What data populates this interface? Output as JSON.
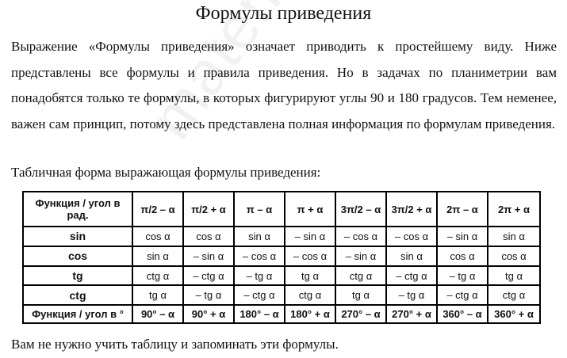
{
  "title": "Формулы приведения",
  "intro": "Выражение «Формулы приведения» означает приводить к простейшему виду. Ниже представлены все формулы  и правила приведения. Но в задачах по планиметрии вам понадобятся только те формулы, в которых фигурируют углы 90 и 180 градусов. Тем неменее, важен сам принцип, потому здесь представлена полная информация по формулам приведения.",
  "caption": "Табличная форма выражающая формулы приведения:",
  "watermark": "matematikalegko.ru",
  "table": {
    "corner_top": "Функция / угол в рад.",
    "corner_bottom": "Функция / угол в °",
    "rad_headers": [
      "π/2 – α",
      "π/2 + α",
      "π – α",
      "π + α",
      "3π/2 – α",
      "3π/2 + α",
      "2π – α",
      "2π + α"
    ],
    "deg_headers": [
      "90° – α",
      "90° + α",
      "180° – α",
      "180° + α",
      "270° – α",
      "270° + α",
      "360° – α",
      "360° + α"
    ],
    "rows": [
      {
        "fn": "sin",
        "cells": [
          "cos α",
          "cos α",
          "sin α",
          "– sin α",
          "– cos α",
          "– cos α",
          "– sin α",
          "sin α"
        ]
      },
      {
        "fn": "cos",
        "cells": [
          "sin α",
          "– sin α",
          "– cos α",
          "– cos α",
          "– sin α",
          "sin α",
          "cos α",
          "cos α"
        ]
      },
      {
        "fn": "tg",
        "cells": [
          "ctg α",
          "– ctg α",
          "– tg α",
          "tg α",
          "ctg α",
          "– ctg α",
          "– tg α",
          "tg α"
        ]
      },
      {
        "fn": "ctg",
        "cells": [
          "tg α",
          "– tg α",
          "– ctg α",
          "ctg α",
          "tg α",
          "– tg α",
          "– ctg α",
          "ctg α"
        ]
      }
    ]
  },
  "footer": "Вам не нужно учить таблицу и запоминать эти формулы."
}
